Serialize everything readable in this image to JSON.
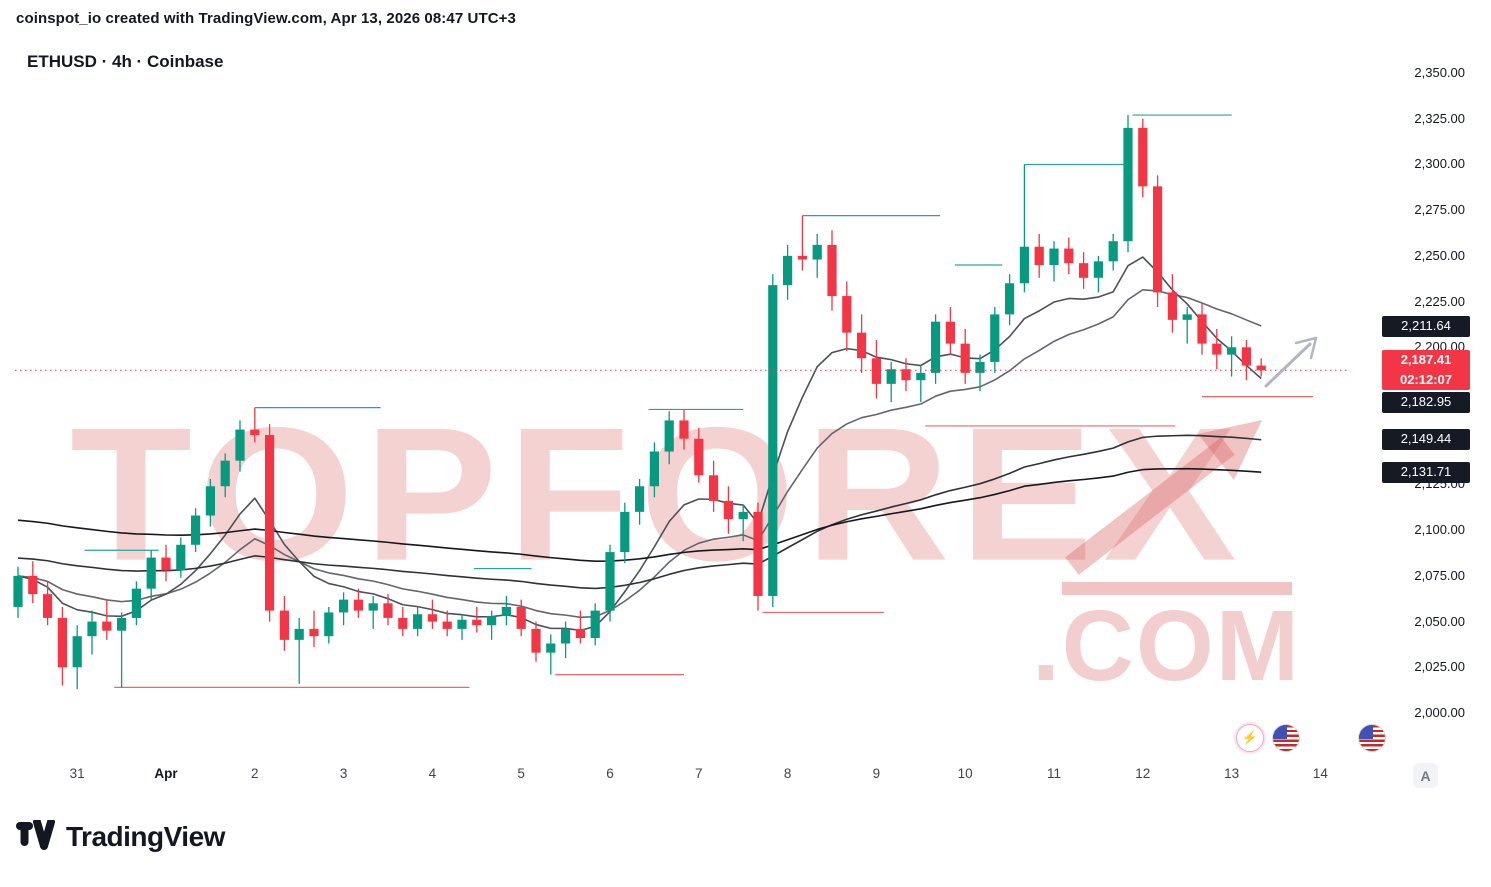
{
  "attribution": {
    "author": "coinspot_io",
    "text": " created with TradingView.com, Apr 13, 2026 08:47 UTC+3"
  },
  "symbol_line": {
    "text": "ETHUSD · 4h · Coinbase"
  },
  "watermark": {
    "line1": "TOPFOREX",
    "line2": ".COM"
  },
  "price_axis": {
    "ticks": [
      "2,350.00",
      "2,325.00",
      "2,300.00",
      "2,275.00",
      "2,250.00",
      "2,225.00",
      "2,200.00",
      "2,125.00",
      "2,100.00",
      "2,075.00",
      "2,050.00",
      "2,025.00",
      "2,000.00"
    ],
    "badges": [
      {
        "text": "2,211.64",
        "price": 2211.64,
        "style": "dark",
        "name": "ma-value-badge-1"
      },
      {
        "text": "2,187.41",
        "price": 2187.41,
        "style": "price",
        "countdown": "02:12:07",
        "name": "current-price-badge"
      },
      {
        "text": "2,182.95",
        "price": 2182.95,
        "style": "dark",
        "name": "ma-value-badge-2"
      },
      {
        "text": "2,149.44",
        "price": 2149.44,
        "style": "dark",
        "name": "ma-value-badge-3"
      },
      {
        "text": "2,131.71",
        "price": 2131.71,
        "style": "dark",
        "name": "ma-value-badge-4"
      }
    ]
  },
  "time_axis": {
    "labels": [
      {
        "t": "31",
        "i": 4
      },
      {
        "t": "Apr",
        "i": 10,
        "bold": true
      },
      {
        "t": "2",
        "i": 16
      },
      {
        "t": "3",
        "i": 22
      },
      {
        "t": "4",
        "i": 28
      },
      {
        "t": "5",
        "i": 34
      },
      {
        "t": "6",
        "i": 40
      },
      {
        "t": "7",
        "i": 46
      },
      {
        "t": "8",
        "i": 52
      },
      {
        "t": "9",
        "i": 58
      },
      {
        "t": "10",
        "i": 64
      },
      {
        "t": "11",
        "i": 70
      },
      {
        "t": "12",
        "i": 76
      },
      {
        "t": "13",
        "i": 82
      },
      {
        "t": "14",
        "i": 88
      }
    ],
    "auto_button": "A"
  },
  "icons": {
    "event_icons": [
      "economic-event-icon",
      "us-flag-icon",
      "us-flag-icon"
    ],
    "drawing": "trend-up-arrow-icon"
  },
  "footer": {
    "brand": "TradingView"
  },
  "chart_data": {
    "type": "candlestick",
    "symbol": "ETHUSD",
    "interval": "4h",
    "exchange": "Coinbase",
    "title": "ETHUSD · 4h · Coinbase",
    "up_color": "#089981",
    "down_color": "#f23645",
    "price_line_color": "#f23645",
    "current_price": 2187.41,
    "countdown": "02:12:07",
    "y_axis": {
      "min": 2000,
      "max": 2350,
      "tick_step": 25
    },
    "x_axis": {
      "labels": [
        "31",
        "Apr",
        "2",
        "3",
        "4",
        "5",
        "6",
        "7",
        "8",
        "9",
        "10",
        "11",
        "12",
        "13",
        "14"
      ]
    },
    "moving_averages": [
      {
        "period": 20,
        "value": 2211.64,
        "color": "#63666e"
      },
      {
        "period": 9,
        "value": 2182.95,
        "color": "#4d5059"
      },
      {
        "period": 70,
        "value": 2149.44,
        "color": "#2f3138",
        "seed": 2085
      },
      {
        "period": 110,
        "value": 2131.71,
        "color": "#17181d",
        "seed": 2106
      }
    ],
    "level_colors": {
      "resistance": "#26a69a",
      "support": "#f0656b"
    },
    "levels": [
      {
        "price": 2089,
        "from": 4.5,
        "to": 9.5,
        "type": "resistance"
      },
      {
        "price": 2167,
        "from": 16,
        "to": 24.5,
        "type": "resistance"
      },
      {
        "price": 2079,
        "from": 30.8,
        "to": 34.7,
        "type": "resistance"
      },
      {
        "price": 2166,
        "from": 42.6,
        "to": 49,
        "type": "resistance"
      },
      {
        "price": 2272,
        "from": 53,
        "to": 62.3,
        "type": "resistance"
      },
      {
        "price": 2245,
        "from": 63.3,
        "to": 66.5,
        "type": "resistance"
      },
      {
        "price": 2300,
        "from": 68,
        "to": 75.3,
        "type": "resistance"
      },
      {
        "price": 2327,
        "from": 75.3,
        "to": 82,
        "type": "resistance"
      },
      {
        "price": 2014,
        "from": 6.5,
        "to": 30.5,
        "type": "support"
      },
      {
        "price": 2021,
        "from": 36.3,
        "to": 45,
        "type": "support"
      },
      {
        "price": 2055,
        "from": 50.3,
        "to": 58.5,
        "type": "support"
      },
      {
        "price": 2157,
        "from": 61.3,
        "to": 78.2,
        "type": "support"
      },
      {
        "price": 2173,
        "from": 80,
        "to": 87.5,
        "type": "support"
      }
    ],
    "candles": [
      [
        2058,
        2080,
        2052,
        2075
      ],
      [
        2075,
        2083,
        2060,
        2065
      ],
      [
        2065,
        2072,
        2048,
        2052
      ],
      [
        2052,
        2058,
        2015,
        2025
      ],
      [
        2025,
        2048,
        2013,
        2042
      ],
      [
        2042,
        2056,
        2032,
        2050
      ],
      [
        2050,
        2062,
        2040,
        2045
      ],
      [
        2045,
        2055,
        2014,
        2052
      ],
      [
        2052,
        2072,
        2048,
        2068
      ],
      [
        2068,
        2089,
        2062,
        2085
      ],
      [
        2085,
        2092,
        2072,
        2078
      ],
      [
        2078,
        2096,
        2074,
        2092
      ],
      [
        2092,
        2112,
        2088,
        2108
      ],
      [
        2108,
        2128,
        2102,
        2124
      ],
      [
        2124,
        2142,
        2118,
        2138
      ],
      [
        2138,
        2160,
        2132,
        2155
      ],
      [
        2155,
        2167,
        2148,
        2152
      ],
      [
        2152,
        2158,
        2050,
        2056
      ],
      [
        2056,
        2064,
        2034,
        2040
      ],
      [
        2040,
        2052,
        2016,
        2046
      ],
      [
        2046,
        2056,
        2036,
        2042
      ],
      [
        2042,
        2058,
        2038,
        2055
      ],
      [
        2055,
        2066,
        2048,
        2062
      ],
      [
        2062,
        2068,
        2052,
        2056
      ],
      [
        2056,
        2064,
        2046,
        2060
      ],
      [
        2060,
        2065,
        2048,
        2052
      ],
      [
        2052,
        2058,
        2042,
        2046
      ],
      [
        2046,
        2058,
        2042,
        2054
      ],
      [
        2054,
        2062,
        2046,
        2050
      ],
      [
        2050,
        2056,
        2042,
        2046
      ],
      [
        2046,
        2054,
        2040,
        2051
      ],
      [
        2051,
        2058,
        2044,
        2048
      ],
      [
        2048,
        2056,
        2040,
        2053
      ],
      [
        2053,
        2064,
        2048,
        2058
      ],
      [
        2058,
        2062,
        2042,
        2046
      ],
      [
        2046,
        2050,
        2028,
        2033
      ],
      [
        2033,
        2043,
        2021,
        2038
      ],
      [
        2038,
        2050,
        2030,
        2046
      ],
      [
        2046,
        2056,
        2038,
        2041
      ],
      [
        2041,
        2060,
        2037,
        2056
      ],
      [
        2056,
        2092,
        2050,
        2088
      ],
      [
        2088,
        2115,
        2082,
        2110
      ],
      [
        2110,
        2128,
        2103,
        2124
      ],
      [
        2124,
        2148,
        2118,
        2143
      ],
      [
        2143,
        2165,
        2136,
        2160
      ],
      [
        2160,
        2166,
        2144,
        2150
      ],
      [
        2150,
        2156,
        2126,
        2130
      ],
      [
        2130,
        2138,
        2110,
        2116
      ],
      [
        2116,
        2124,
        2098,
        2106
      ],
      [
        2106,
        2114,
        2094,
        2110
      ],
      [
        2110,
        2115,
        2056,
        2064
      ],
      [
        2064,
        2240,
        2058,
        2234
      ],
      [
        2234,
        2256,
        2226,
        2250
      ],
      [
        2250,
        2272,
        2242,
        2248
      ],
      [
        2248,
        2262,
        2238,
        2256
      ],
      [
        2256,
        2264,
        2220,
        2228
      ],
      [
        2228,
        2236,
        2198,
        2208
      ],
      [
        2208,
        2218,
        2186,
        2194
      ],
      [
        2194,
        2204,
        2172,
        2180
      ],
      [
        2180,
        2192,
        2170,
        2188
      ],
      [
        2188,
        2194,
        2176,
        2182
      ],
      [
        2182,
        2190,
        2170,
        2186
      ],
      [
        2186,
        2218,
        2180,
        2214
      ],
      [
        2214,
        2222,
        2196,
        2202
      ],
      [
        2202,
        2210,
        2180,
        2186
      ],
      [
        2186,
        2196,
        2176,
        2192
      ],
      [
        2192,
        2222,
        2186,
        2218
      ],
      [
        2218,
        2240,
        2212,
        2235
      ],
      [
        2235,
        2300,
        2230,
        2255
      ],
      [
        2255,
        2262,
        2238,
        2245
      ],
      [
        2245,
        2258,
        2236,
        2254
      ],
      [
        2254,
        2260,
        2240,
        2246
      ],
      [
        2246,
        2252,
        2232,
        2238
      ],
      [
        2238,
        2250,
        2230,
        2247
      ],
      [
        2247,
        2262,
        2242,
        2258
      ],
      [
        2258,
        2327,
        2252,
        2320
      ],
      [
        2320,
        2325,
        2282,
        2288
      ],
      [
        2288,
        2294,
        2222,
        2230
      ],
      [
        2230,
        2240,
        2208,
        2215
      ],
      [
        2215,
        2222,
        2202,
        2218
      ],
      [
        2218,
        2224,
        2196,
        2202
      ],
      [
        2202,
        2210,
        2188,
        2196
      ],
      [
        2196,
        2206,
        2184,
        2200
      ],
      [
        2200,
        2204,
        2182,
        2190
      ],
      [
        2190,
        2194,
        2184,
        2187.41
      ]
    ]
  }
}
